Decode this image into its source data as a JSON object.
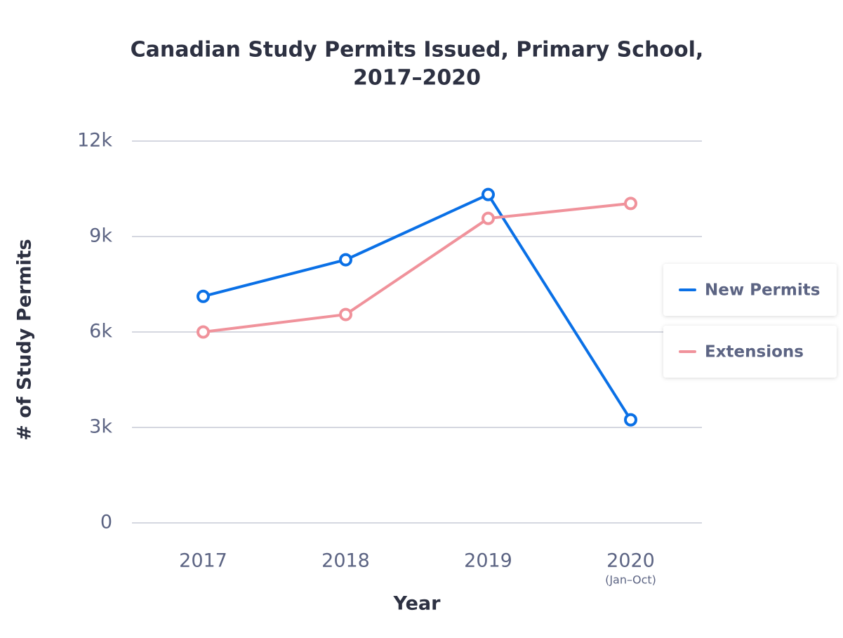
{
  "chart_data": {
    "type": "line",
    "title": [
      "Canadian Study Permits Issued, Primary School,",
      "2017–2020"
    ],
    "x_label": "Year",
    "y_label": "# of Study Permits",
    "categories": [
      "2017",
      "2018",
      "2019",
      "2020"
    ],
    "category_notes": [
      null,
      null,
      null,
      "(Jan–Oct)"
    ],
    "series": [
      {
        "name": "New Permits",
        "color": "#0a70e6",
        "values": [
          7120,
          8270,
          10320,
          3240
        ]
      },
      {
        "name": "Extensions",
        "color": "#f0929b",
        "values": [
          6000,
          6550,
          9570,
          10040
        ]
      }
    ],
    "ylim": [
      0,
      12000
    ],
    "yticks": [
      {
        "value": 0,
        "label": "0"
      },
      {
        "value": 3000,
        "label": "3k"
      },
      {
        "value": 6000,
        "label": "6k"
      },
      {
        "value": 9000,
        "label": "9k"
      },
      {
        "value": 12000,
        "label": "12k"
      }
    ],
    "grid": true,
    "legend": "right"
  }
}
